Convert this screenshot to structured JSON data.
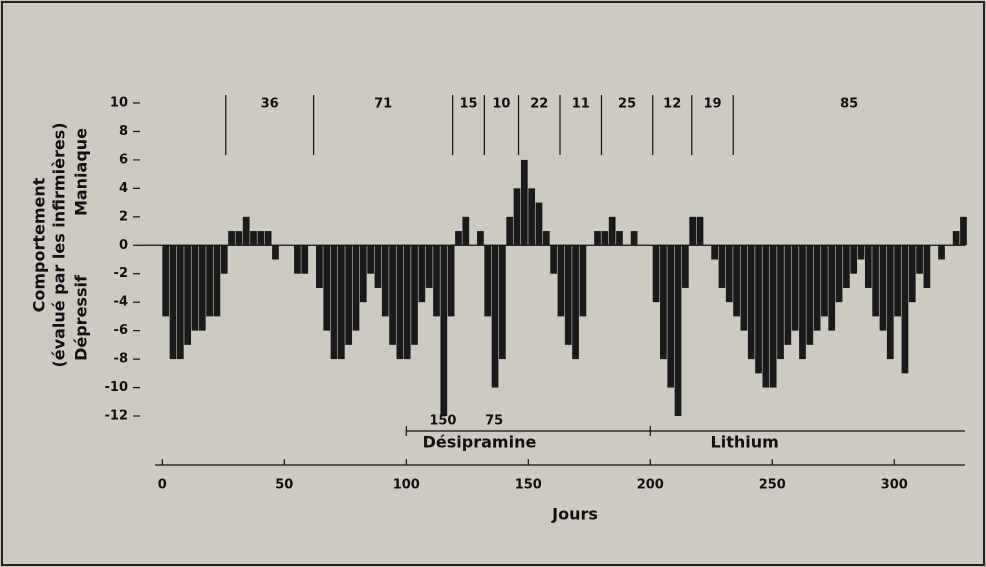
{
  "chart_data": {
    "type": "bar",
    "ylabel_lines": [
      "Comportement",
      "(évalué par les infirmières)"
    ],
    "ylabel_upper": "Maniaque",
    "ylabel_lower": "Dépressif",
    "xlabel": "Jours",
    "color": "#1a1a1a",
    "bar_width": 3,
    "x": [
      0,
      3,
      6,
      9,
      12,
      15,
      18,
      21,
      24,
      27,
      30,
      33,
      36,
      39,
      42,
      45,
      48,
      51,
      54,
      57,
      60,
      63,
      66,
      69,
      72,
      75,
      78,
      81,
      84,
      87,
      90,
      93,
      96,
      99,
      102,
      105,
      108,
      111,
      114,
      117,
      120,
      123,
      126,
      129,
      132,
      135,
      138,
      141,
      144,
      147,
      150,
      153,
      156,
      159,
      162,
      165,
      168,
      171,
      174,
      177,
      180,
      183,
      186,
      189,
      192,
      195,
      198,
      201,
      204,
      207,
      210,
      213,
      216,
      219,
      222,
      225,
      228,
      231,
      234,
      237,
      240,
      243,
      246,
      249,
      252,
      255,
      258,
      261,
      264,
      267,
      270,
      273,
      276,
      279,
      282,
      285,
      288,
      291,
      294,
      297,
      300,
      303,
      306,
      309,
      312,
      315,
      318,
      321,
      324,
      327
    ],
    "values": [
      -5,
      -8,
      -8,
      -7,
      -6,
      -6,
      -5,
      -5,
      -2,
      1,
      1,
      2,
      1,
      1,
      1,
      -1,
      0,
      0,
      -2,
      -2,
      0,
      -3,
      -6,
      -8,
      -8,
      -7,
      -6,
      -4,
      -2,
      -3,
      -5,
      -7,
      -8,
      -8,
      -7,
      -4,
      -3,
      -5,
      -12,
      -5,
      1,
      2,
      0,
      1,
      -5,
      -10,
      -8,
      2,
      4,
      6,
      4,
      3,
      1,
      -2,
      -5,
      -7,
      -8,
      -5,
      0,
      1,
      1,
      2,
      1,
      0,
      1,
      0,
      0,
      -4,
      -8,
      -10,
      -12,
      -3,
      2,
      2,
      0,
      -1,
      -3,
      -4,
      -5,
      -6,
      -8,
      -9,
      -10,
      -10,
      -8,
      -7,
      -6,
      -8,
      -7,
      -6,
      -5,
      -6,
      -4,
      -3,
      -2,
      -1,
      -3,
      -5,
      -6,
      -8,
      -5,
      -9,
      -4,
      -2,
      -3,
      0,
      -1,
      0,
      1,
      2
    ],
    "xlim": [
      -3,
      329
    ],
    "xticks": [
      0,
      50,
      100,
      150,
      200,
      250,
      300
    ],
    "ylim": [
      -12,
      10
    ],
    "yticks": [
      10,
      8,
      6,
      4,
      2,
      0,
      -2,
      -4,
      -6,
      -8,
      -10,
      -12
    ],
    "cycles": {
      "starts": [
        26,
        62,
        119,
        132,
        146,
        163,
        180,
        201,
        217,
        234
      ],
      "labels": [
        "36",
        "71",
        "15",
        "10",
        "22",
        "11",
        "25",
        "12",
        "19",
        "85"
      ]
    },
    "treatments": [
      {
        "name": "Désipramine",
        "start": 100,
        "end": 200
      },
      {
        "name": "Lithium",
        "start": 200,
        "end": 329
      }
    ],
    "doses": [
      {
        "label": "150",
        "day": 115
      },
      {
        "label": "75",
        "day": 136
      }
    ]
  }
}
